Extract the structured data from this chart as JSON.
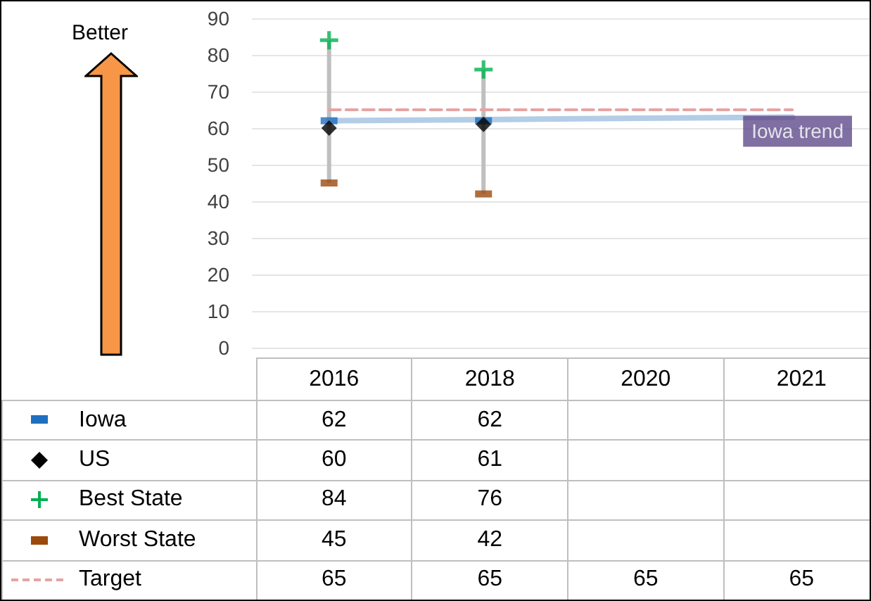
{
  "chart_data": {
    "type": "scatter",
    "categories": [
      "2016",
      "2018",
      "2020",
      "2021"
    ],
    "ylim": [
      0,
      90
    ],
    "yticks": [
      0,
      10,
      20,
      30,
      40,
      50,
      60,
      70,
      80,
      90
    ],
    "grid": "y",
    "legend": "bottom",
    "annotations": [
      "Better",
      {
        "text": "Iowa trend",
        "x": "2021",
        "y": 63
      }
    ],
    "series": [
      {
        "type": "bar",
        "color": "#bfbfbf",
        "base": [
          45,
          42,
          null,
          null
        ],
        "values": [
          39,
          34,
          null,
          null
        ]
      },
      {
        "name": "Iowa",
        "color": "#1f6fc0",
        "marker": "square",
        "values": [
          62,
          62,
          null,
          null
        ],
        "value_labels": [
          "62",
          "62",
          null,
          null
        ]
      },
      {
        "name": "US",
        "color": "#000000",
        "marker": "diamond",
        "values": [
          60,
          61,
          null,
          null
        ],
        "value_labels": [
          "60",
          "61",
          null,
          null
        ]
      },
      {
        "name": "Best State",
        "color": "#00b050",
        "marker": "cross",
        "values": [
          84,
          76,
          null,
          null
        ],
        "value_labels": [
          "84",
          "76",
          null,
          null
        ]
      },
      {
        "name": "Worst State",
        "color": "#9c4a0c",
        "marker": "square",
        "values": [
          45,
          42,
          null,
          null
        ],
        "value_labels": [
          "45",
          "42",
          null,
          null
        ]
      },
      {
        "name": "Target",
        "type": "line",
        "color": "#e6a3a3",
        "marker": "none",
        "line_style": "dashed",
        "values": [
          65,
          65,
          65,
          65
        ],
        "value_labels": [
          "65",
          "65",
          "65",
          "65"
        ]
      },
      {
        "type": "line",
        "color": "#b4cde6",
        "marker": "none",
        "line_style": "solid",
        "values": [
          62,
          62.3,
          62.7,
          63
        ]
      }
    ]
  }
}
